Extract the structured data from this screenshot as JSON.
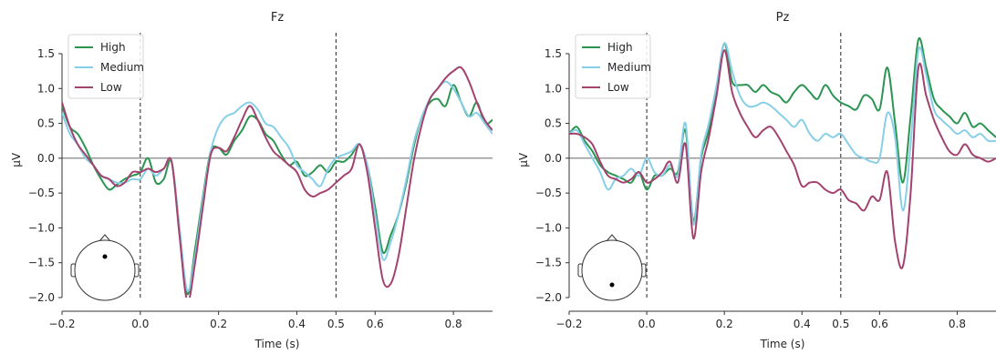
{
  "figure": {
    "legend_labels": [
      "High",
      "Medium",
      "Low"
    ]
  },
  "chart_data": [
    {
      "type": "line",
      "title": "Fz",
      "xlabel": "Time (s)",
      "ylabel": "µV",
      "xlim": [
        -0.2,
        0.9
      ],
      "ylim": [
        -2.0,
        1.8
      ],
      "x_ticks": [
        -0.2,
        0.0,
        0.2,
        0.4,
        0.5,
        0.6,
        0.8
      ],
      "x_tick_labels": [
        "−0.2",
        "0.0",
        "0.2",
        "0.4",
        "0.5",
        "0.6",
        "0.8"
      ],
      "y_ticks": [
        -2.0,
        -1.5,
        -1.0,
        -0.5,
        0.0,
        0.5,
        1.0,
        1.5
      ],
      "y_tick_labels": [
        "−2.0",
        "−1.5",
        "−1.0",
        "−0.5",
        "0.0",
        "0.5",
        "1.0",
        "1.5"
      ],
      "vlines": [
        0.0,
        0.5
      ],
      "hline": 0.0,
      "legend_position": "top-left",
      "sensor_position": "frontal-midline",
      "series": [
        {
          "name": "High",
          "color": "#2a9550",
          "x": [
            -0.2,
            -0.18,
            -0.16,
            -0.14,
            -0.12,
            -0.1,
            -0.08,
            -0.06,
            -0.04,
            -0.02,
            0.0,
            0.02,
            0.04,
            0.06,
            0.08,
            0.1,
            0.12,
            0.14,
            0.16,
            0.18,
            0.2,
            0.22,
            0.24,
            0.26,
            0.28,
            0.3,
            0.32,
            0.34,
            0.36,
            0.38,
            0.4,
            0.42,
            0.44,
            0.46,
            0.48,
            0.5,
            0.52,
            0.54,
            0.56,
            0.58,
            0.6,
            0.62,
            0.64,
            0.66,
            0.68,
            0.7,
            0.72,
            0.74,
            0.76,
            0.78,
            0.8,
            0.82,
            0.84,
            0.86,
            0.88,
            0.9
          ],
          "y": [
            0.75,
            0.45,
            0.35,
            0.15,
            -0.1,
            -0.3,
            -0.45,
            -0.38,
            -0.3,
            -0.25,
            -0.2,
            0.0,
            -0.35,
            -0.3,
            -0.05,
            -1.0,
            -1.95,
            -1.3,
            -0.55,
            0.1,
            0.15,
            0.05,
            0.25,
            0.4,
            0.6,
            0.55,
            0.35,
            0.25,
            0.05,
            -0.1,
            -0.05,
            -0.25,
            -0.2,
            -0.1,
            -0.2,
            -0.05,
            -0.05,
            0.05,
            0.2,
            -0.1,
            -0.7,
            -1.35,
            -1.1,
            -0.8,
            -0.35,
            0.2,
            0.6,
            0.8,
            0.85,
            0.75,
            1.05,
            0.8,
            0.6,
            0.8,
            0.5,
            0.55
          ]
        },
        {
          "name": "Medium",
          "color": "#87cfe8",
          "x": [
            -0.2,
            -0.18,
            -0.16,
            -0.14,
            -0.12,
            -0.1,
            -0.08,
            -0.06,
            -0.04,
            -0.02,
            0.0,
            0.02,
            0.04,
            0.06,
            0.08,
            0.1,
            0.12,
            0.14,
            0.16,
            0.18,
            0.2,
            0.22,
            0.24,
            0.26,
            0.28,
            0.3,
            0.32,
            0.34,
            0.36,
            0.38,
            0.4,
            0.42,
            0.44,
            0.46,
            0.48,
            0.5,
            0.52,
            0.54,
            0.56,
            0.58,
            0.6,
            0.62,
            0.64,
            0.66,
            0.68,
            0.7,
            0.72,
            0.74,
            0.76,
            0.78,
            0.8,
            0.82,
            0.84,
            0.86,
            0.88,
            0.9
          ],
          "y": [
            0.65,
            0.35,
            0.2,
            0.0,
            -0.1,
            -0.25,
            -0.3,
            -0.35,
            -0.35,
            -0.3,
            -0.3,
            -0.15,
            -0.25,
            -0.15,
            -0.05,
            -1.0,
            -1.9,
            -1.4,
            -0.6,
            0.1,
            0.45,
            0.6,
            0.65,
            0.75,
            0.8,
            0.7,
            0.5,
            0.45,
            0.3,
            0.15,
            -0.1,
            -0.2,
            -0.3,
            -0.4,
            -0.15,
            0.0,
            0.05,
            0.1,
            0.2,
            -0.1,
            -0.8,
            -1.45,
            -1.2,
            -0.8,
            -0.3,
            0.25,
            0.6,
            0.85,
            1.0,
            1.1,
            1.0,
            0.8,
            0.6,
            0.65,
            0.5,
            0.35
          ]
        },
        {
          "name": "Low",
          "color": "#a3426e",
          "x": [
            -0.2,
            -0.18,
            -0.16,
            -0.14,
            -0.12,
            -0.1,
            -0.08,
            -0.06,
            -0.04,
            -0.02,
            0.0,
            0.02,
            0.04,
            0.06,
            0.08,
            0.1,
            0.12,
            0.14,
            0.16,
            0.18,
            0.2,
            0.22,
            0.24,
            0.26,
            0.28,
            0.3,
            0.32,
            0.34,
            0.36,
            0.38,
            0.4,
            0.42,
            0.44,
            0.46,
            0.48,
            0.5,
            0.52,
            0.54,
            0.56,
            0.58,
            0.6,
            0.62,
            0.64,
            0.66,
            0.68,
            0.7,
            0.72,
            0.74,
            0.76,
            0.78,
            0.8,
            0.82,
            0.84,
            0.86,
            0.88,
            0.9
          ],
          "y": [
            0.8,
            0.45,
            0.2,
            0.05,
            -0.1,
            -0.25,
            -0.3,
            -0.4,
            -0.35,
            -0.2,
            -0.2,
            -0.15,
            -0.2,
            -0.15,
            -0.05,
            -1.1,
            -2.05,
            -1.5,
            -0.7,
            0.05,
            0.15,
            0.1,
            0.3,
            0.55,
            0.75,
            0.55,
            0.3,
            0.1,
            0.0,
            -0.1,
            -0.2,
            -0.45,
            -0.55,
            -0.5,
            -0.45,
            -0.35,
            -0.25,
            -0.15,
            0.2,
            -0.2,
            -1.0,
            -1.75,
            -1.8,
            -1.4,
            -0.7,
            0.0,
            0.5,
            0.85,
            1.0,
            1.15,
            1.25,
            1.3,
            1.1,
            0.8,
            0.55,
            0.4
          ]
        }
      ]
    },
    {
      "type": "line",
      "title": "Pz",
      "xlabel": "Time (s)",
      "ylabel": "µV",
      "xlim": [
        -0.2,
        0.9
      ],
      "ylim": [
        -2.0,
        1.8
      ],
      "x_ticks": [
        -0.2,
        0.0,
        0.2,
        0.4,
        0.5,
        0.6,
        0.8
      ],
      "x_tick_labels": [
        "−0.2",
        "0.0",
        "0.2",
        "0.4",
        "0.5",
        "0.6",
        "0.8"
      ],
      "y_ticks": [
        -2.0,
        -1.5,
        -1.0,
        -0.5,
        0.0,
        0.5,
        1.0,
        1.5
      ],
      "y_tick_labels": [
        "−2.0",
        "−1.5",
        "−1.0",
        "−0.5",
        "0.0",
        "0.5",
        "1.0",
        "1.5"
      ],
      "vlines": [
        0.0,
        0.5
      ],
      "hline": 0.0,
      "legend_position": "top-left",
      "sensor_position": "parietal-midline",
      "series": [
        {
          "name": "High",
          "color": "#2a9550",
          "x": [
            -0.2,
            -0.18,
            -0.16,
            -0.14,
            -0.12,
            -0.1,
            -0.08,
            -0.06,
            -0.04,
            -0.02,
            0.0,
            0.02,
            0.04,
            0.06,
            0.08,
            0.1,
            0.12,
            0.14,
            0.16,
            0.18,
            0.2,
            0.22,
            0.24,
            0.26,
            0.28,
            0.3,
            0.32,
            0.34,
            0.36,
            0.38,
            0.4,
            0.42,
            0.44,
            0.46,
            0.48,
            0.5,
            0.52,
            0.54,
            0.56,
            0.58,
            0.6,
            0.62,
            0.64,
            0.66,
            0.68,
            0.7,
            0.72,
            0.74,
            0.76,
            0.78,
            0.8,
            0.82,
            0.84,
            0.86,
            0.88,
            0.9
          ],
          "y": [
            0.35,
            0.45,
            0.25,
            0.1,
            -0.1,
            -0.2,
            -0.25,
            -0.3,
            -0.35,
            -0.2,
            -0.45,
            -0.25,
            -0.25,
            -0.15,
            -0.2,
            0.4,
            -0.9,
            0.0,
            0.4,
            1.0,
            1.65,
            1.1,
            1.05,
            1.05,
            0.95,
            1.05,
            0.95,
            0.9,
            0.8,
            0.95,
            1.05,
            0.95,
            0.85,
            1.05,
            0.9,
            0.8,
            0.75,
            0.7,
            0.9,
            0.85,
            0.7,
            1.3,
            0.5,
            -0.35,
            0.6,
            1.7,
            1.3,
            0.85,
            0.7,
            0.6,
            0.5,
            0.65,
            0.45,
            0.5,
            0.4,
            0.3
          ]
        },
        {
          "name": "Medium",
          "color": "#87cfe8",
          "x": [
            -0.2,
            -0.18,
            -0.16,
            -0.14,
            -0.12,
            -0.1,
            -0.08,
            -0.06,
            -0.04,
            -0.02,
            0.0,
            0.02,
            0.04,
            0.06,
            0.08,
            0.1,
            0.12,
            0.14,
            0.16,
            0.18,
            0.2,
            0.22,
            0.24,
            0.26,
            0.28,
            0.3,
            0.32,
            0.34,
            0.36,
            0.38,
            0.4,
            0.42,
            0.44,
            0.46,
            0.48,
            0.5,
            0.52,
            0.54,
            0.56,
            0.58,
            0.6,
            0.62,
            0.64,
            0.66,
            0.68,
            0.7,
            0.72,
            0.74,
            0.76,
            0.78,
            0.8,
            0.82,
            0.84,
            0.86,
            0.88,
            0.9
          ],
          "y": [
            0.35,
            0.4,
            0.2,
            0.0,
            -0.2,
            -0.45,
            -0.3,
            -0.25,
            -0.15,
            -0.25,
            0.0,
            -0.2,
            -0.25,
            -0.1,
            -0.25,
            0.5,
            -0.95,
            0.05,
            0.5,
            1.05,
            1.65,
            1.25,
            0.9,
            0.75,
            0.75,
            0.8,
            0.75,
            0.65,
            0.55,
            0.45,
            0.55,
            0.35,
            0.25,
            0.35,
            0.3,
            0.35,
            0.2,
            0.05,
            0.0,
            -0.05,
            0.0,
            0.65,
            0.3,
            -0.75,
            0.2,
            1.55,
            1.2,
            0.7,
            0.55,
            0.45,
            0.35,
            0.4,
            0.3,
            0.35,
            0.25,
            0.25
          ]
        },
        {
          "name": "Low",
          "color": "#a3426e",
          "x": [
            -0.2,
            -0.18,
            -0.16,
            -0.14,
            -0.12,
            -0.1,
            -0.08,
            -0.06,
            -0.04,
            -0.02,
            0.0,
            0.02,
            0.04,
            0.06,
            0.08,
            0.1,
            0.12,
            0.14,
            0.16,
            0.18,
            0.2,
            0.22,
            0.24,
            0.26,
            0.28,
            0.3,
            0.32,
            0.34,
            0.36,
            0.38,
            0.4,
            0.42,
            0.44,
            0.46,
            0.48,
            0.5,
            0.52,
            0.54,
            0.56,
            0.58,
            0.6,
            0.62,
            0.64,
            0.66,
            0.68,
            0.7,
            0.72,
            0.74,
            0.76,
            0.78,
            0.8,
            0.82,
            0.84,
            0.86,
            0.88,
            0.9
          ],
          "y": [
            0.35,
            0.35,
            0.3,
            0.2,
            -0.05,
            -0.25,
            -0.3,
            -0.35,
            -0.3,
            -0.2,
            -0.35,
            -0.3,
            -0.2,
            -0.05,
            -0.35,
            0.2,
            -1.15,
            -0.2,
            0.3,
            0.9,
            1.55,
            0.95,
            0.65,
            0.45,
            0.3,
            0.4,
            0.45,
            0.3,
            0.1,
            -0.1,
            -0.4,
            -0.35,
            -0.35,
            -0.45,
            -0.5,
            -0.45,
            -0.6,
            -0.65,
            -0.75,
            -0.55,
            -0.6,
            -0.2,
            -1.2,
            -1.55,
            -0.5,
            1.3,
            0.9,
            0.55,
            0.3,
            0.1,
            0.05,
            0.2,
            0.05,
            0.0,
            -0.05,
            0.0
          ]
        }
      ]
    }
  ]
}
